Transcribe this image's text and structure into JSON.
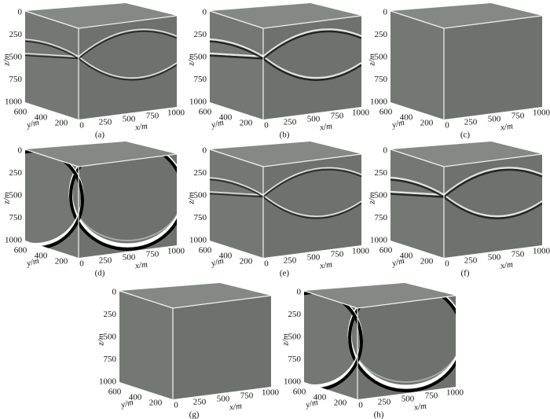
{
  "axes": {
    "z_label": "z/m",
    "z_ticks": [
      "0",
      "250",
      "500",
      "750",
      "1000"
    ],
    "y_label": "y/m",
    "y_ticks": [
      "600",
      "400",
      "200"
    ],
    "x_label": "x/m",
    "x_ticks": [
      "0",
      "250",
      "500",
      "750",
      "1000"
    ]
  },
  "panels": [
    {
      "label": "(a)"
    },
    {
      "label": "(b)"
    },
    {
      "label": "(c)"
    },
    {
      "label": "(d)"
    },
    {
      "label": "(e)"
    },
    {
      "label": "(f)"
    },
    {
      "label": "(g)"
    },
    {
      "label": "(h)"
    }
  ]
}
